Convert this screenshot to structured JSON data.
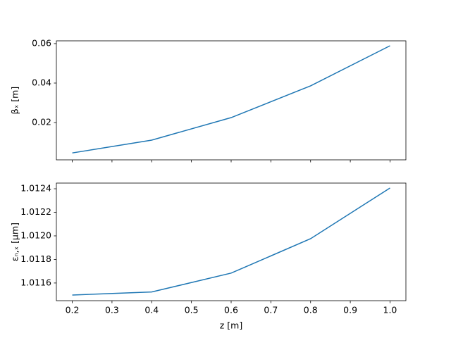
{
  "chart_data": [
    {
      "type": "line",
      "ylabel": "βₓ [m]",
      "x": [
        0.2,
        0.4,
        0.6,
        0.8,
        1.0
      ],
      "series": [
        {
          "color": "#1f77b4",
          "values": [
            0.0046,
            0.0111,
            0.0225,
            0.0386,
            0.0589
          ]
        }
      ],
      "xlim": [
        0.16,
        1.04
      ],
      "ylim": [
        0.0011,
        0.0614
      ],
      "yticks": [
        0.02,
        0.04,
        0.06
      ]
    },
    {
      "type": "line",
      "xlabel": "z [m]",
      "ylabel": "εₙ,ₓ [μm]",
      "x": [
        0.2,
        0.4,
        0.6,
        0.8,
        1.0
      ],
      "series": [
        {
          "color": "#1f77b4",
          "values": [
            1.011498,
            1.011524,
            1.011684,
            1.011976,
            1.012406
          ]
        }
      ],
      "xlim": [
        0.16,
        1.04
      ],
      "ylim": [
        1.01145,
        1.012448
      ],
      "xticks": [
        0.2,
        0.3,
        0.4,
        0.5,
        0.6,
        0.7,
        0.8,
        0.9,
        {
          "value": 1.0,
          "label": "1.0"
        }
      ],
      "yticks": [
        1.0116,
        1.0118,
        {
          "value": 1.012,
          "label": "1.0120"
        },
        1.0122,
        1.0124
      ]
    }
  ]
}
